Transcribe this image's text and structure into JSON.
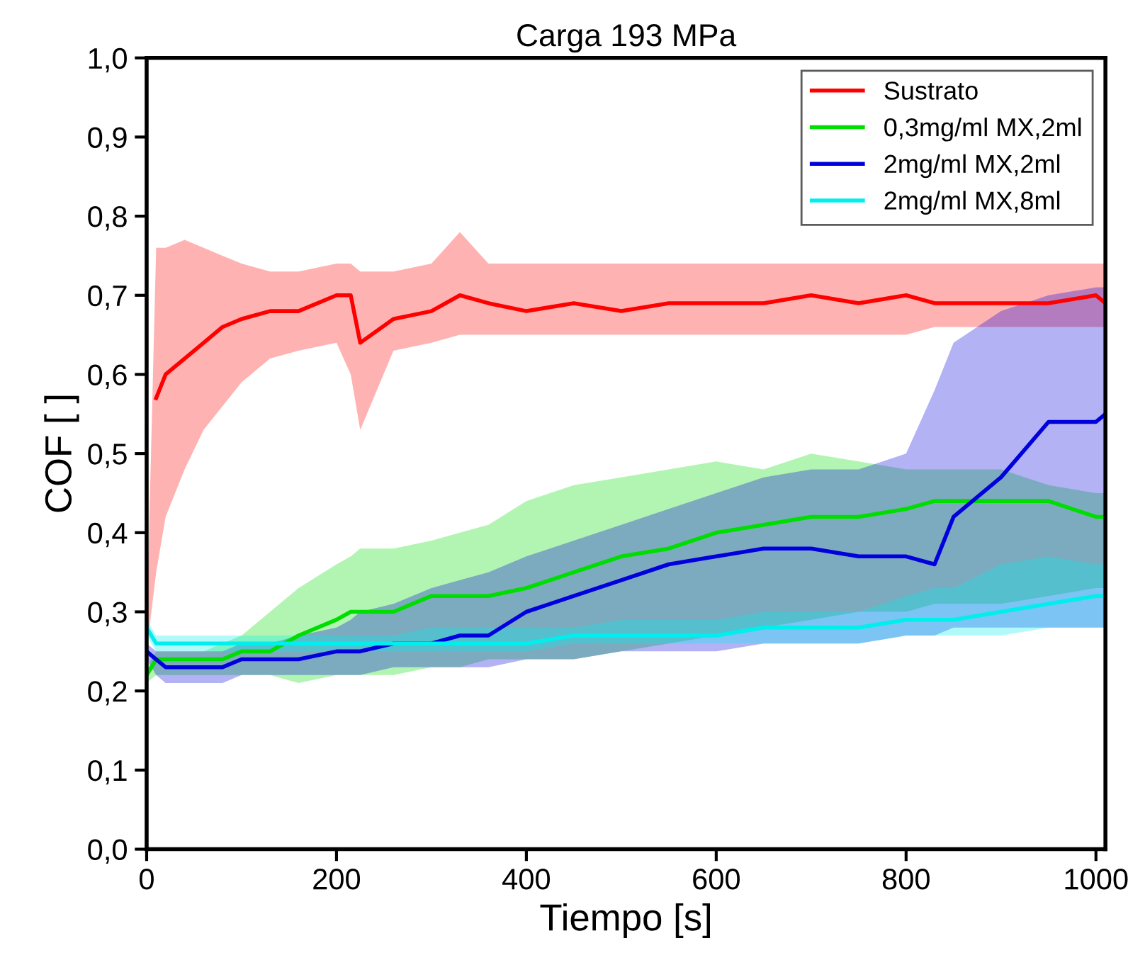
{
  "chart_data": {
    "type": "line",
    "title": "Carga 193 MPa",
    "xlabel": "Tiempo [s]",
    "ylabel": "COF [ ]",
    "x": [
      0,
      10,
      20,
      40,
      60,
      80,
      100,
      130,
      160,
      200,
      215,
      225,
      260,
      300,
      330,
      360,
      400,
      450,
      500,
      550,
      600,
      650,
      700,
      750,
      800,
      830,
      850,
      900,
      950,
      1000,
      1010
    ],
    "series": [
      {
        "name": "Sustrato",
        "color": "#ff0000",
        "values": [
          null,
          0.57,
          0.6,
          0.62,
          0.64,
          0.66,
          0.67,
          0.68,
          0.68,
          0.7,
          0.7,
          0.64,
          0.67,
          0.68,
          0.7,
          0.69,
          0.68,
          0.69,
          0.68,
          0.69,
          0.69,
          0.69,
          0.7,
          0.69,
          0.7,
          0.69,
          0.69,
          0.69,
          0.69,
          0.7,
          0.69
        ],
        "lower": [
          0.25,
          0.35,
          0.42,
          0.48,
          0.53,
          0.56,
          0.59,
          0.62,
          0.63,
          0.64,
          0.6,
          0.53,
          0.63,
          0.64,
          0.65,
          0.65,
          0.65,
          0.65,
          0.65,
          0.65,
          0.65,
          0.65,
          0.65,
          0.65,
          0.65,
          0.66,
          0.66,
          0.66,
          0.66,
          0.66,
          0.66
        ],
        "upper": [
          0.28,
          0.76,
          0.76,
          0.77,
          0.76,
          0.75,
          0.74,
          0.73,
          0.73,
          0.74,
          0.74,
          0.73,
          0.73,
          0.74,
          0.78,
          0.74,
          0.74,
          0.74,
          0.74,
          0.74,
          0.74,
          0.74,
          0.74,
          0.74,
          0.74,
          0.74,
          0.74,
          0.74,
          0.74,
          0.74,
          0.74
        ]
      },
      {
        "name": "0,3mg/ml MX,2ml",
        "color": "#00dd00",
        "values": [
          0.22,
          0.24,
          0.24,
          0.24,
          0.24,
          0.24,
          0.25,
          0.25,
          0.27,
          0.29,
          0.3,
          0.3,
          0.3,
          0.32,
          0.32,
          0.32,
          0.33,
          0.35,
          0.37,
          0.38,
          0.4,
          0.41,
          0.42,
          0.42,
          0.43,
          0.44,
          0.44,
          0.44,
          0.44,
          0.42,
          0.42
        ],
        "lower": [
          0.21,
          0.22,
          0.22,
          0.22,
          0.22,
          0.22,
          0.22,
          0.22,
          0.21,
          0.22,
          0.22,
          0.22,
          0.22,
          0.23,
          0.23,
          0.24,
          0.24,
          0.24,
          0.25,
          0.26,
          0.27,
          0.28,
          0.29,
          0.3,
          0.3,
          0.31,
          0.31,
          0.31,
          0.32,
          0.33,
          0.33
        ],
        "upper": [
          0.23,
          0.25,
          0.25,
          0.25,
          0.25,
          0.26,
          0.27,
          0.3,
          0.33,
          0.36,
          0.37,
          0.38,
          0.38,
          0.39,
          0.4,
          0.41,
          0.44,
          0.46,
          0.47,
          0.48,
          0.49,
          0.48,
          0.5,
          0.49,
          0.48,
          0.48,
          0.48,
          0.48,
          0.46,
          0.45,
          0.45
        ]
      },
      {
        "name": "2mg/ml MX,2ml",
        "color": "#0000dd",
        "values": [
          0.25,
          0.24,
          0.23,
          0.23,
          0.23,
          0.23,
          0.24,
          0.24,
          0.24,
          0.25,
          0.25,
          0.25,
          0.26,
          0.26,
          0.27,
          0.27,
          0.3,
          0.32,
          0.34,
          0.36,
          0.37,
          0.38,
          0.38,
          0.37,
          0.37,
          0.36,
          0.42,
          0.47,
          0.54,
          0.54,
          0.55
        ],
        "lower": [
          0.24,
          0.22,
          0.21,
          0.21,
          0.21,
          0.21,
          0.22,
          0.22,
          0.22,
          0.22,
          0.22,
          0.22,
          0.23,
          0.23,
          0.23,
          0.23,
          0.24,
          0.24,
          0.25,
          0.25,
          0.25,
          0.26,
          0.26,
          0.26,
          0.27,
          0.27,
          0.28,
          0.28,
          0.28,
          0.28,
          0.28
        ],
        "upper": [
          0.26,
          0.25,
          0.25,
          0.25,
          0.25,
          0.25,
          0.26,
          0.26,
          0.27,
          0.28,
          0.29,
          0.3,
          0.31,
          0.33,
          0.34,
          0.35,
          0.37,
          0.39,
          0.41,
          0.43,
          0.45,
          0.47,
          0.48,
          0.48,
          0.5,
          0.58,
          0.64,
          0.68,
          0.7,
          0.71,
          0.71
        ]
      },
      {
        "name": "2mg/ml MX,8ml",
        "color": "#00eeee",
        "values": [
          0.28,
          0.26,
          0.26,
          0.26,
          0.26,
          0.26,
          0.26,
          0.26,
          0.26,
          0.26,
          0.26,
          0.26,
          0.26,
          0.26,
          0.26,
          0.26,
          0.26,
          0.27,
          0.27,
          0.27,
          0.27,
          0.28,
          0.28,
          0.28,
          0.29,
          0.29,
          0.29,
          0.3,
          0.31,
          0.32,
          0.32
        ],
        "lower": [
          0.27,
          0.25,
          0.25,
          0.25,
          0.25,
          0.25,
          0.25,
          0.25,
          0.25,
          0.25,
          0.25,
          0.25,
          0.25,
          0.25,
          0.25,
          0.25,
          0.25,
          0.26,
          0.26,
          0.26,
          0.26,
          0.26,
          0.26,
          0.26,
          0.27,
          0.27,
          0.27,
          0.27,
          0.28,
          0.28,
          0.28
        ],
        "upper": [
          0.29,
          0.27,
          0.27,
          0.27,
          0.27,
          0.27,
          0.27,
          0.27,
          0.27,
          0.27,
          0.27,
          0.27,
          0.27,
          0.28,
          0.28,
          0.28,
          0.28,
          0.28,
          0.29,
          0.29,
          0.29,
          0.3,
          0.3,
          0.3,
          0.32,
          0.33,
          0.33,
          0.36,
          0.37,
          0.36,
          0.36
        ]
      }
    ],
    "xlim": [
      0,
      1010
    ],
    "xticks": [
      0,
      200,
      400,
      600,
      800,
      1000
    ],
    "ylim": [
      0,
      1
    ],
    "yticks": [
      {
        "value": 0,
        "label": "0,0"
      },
      {
        "value": 0.1,
        "label": "0,1"
      },
      {
        "value": 0.2,
        "label": "0,2"
      },
      {
        "value": 0.3,
        "label": "0,3"
      },
      {
        "value": 0.4,
        "label": "0,4"
      },
      {
        "value": 0.5,
        "label": "0,5"
      },
      {
        "value": 0.6,
        "label": "0,6"
      },
      {
        "value": 0.7,
        "label": "0,7"
      },
      {
        "value": 0.8,
        "label": "0,8"
      },
      {
        "value": 0.9,
        "label": "0,9"
      },
      {
        "value": 1.0,
        "label": "1,0"
      }
    ],
    "legend": "top right",
    "grid": false
  }
}
